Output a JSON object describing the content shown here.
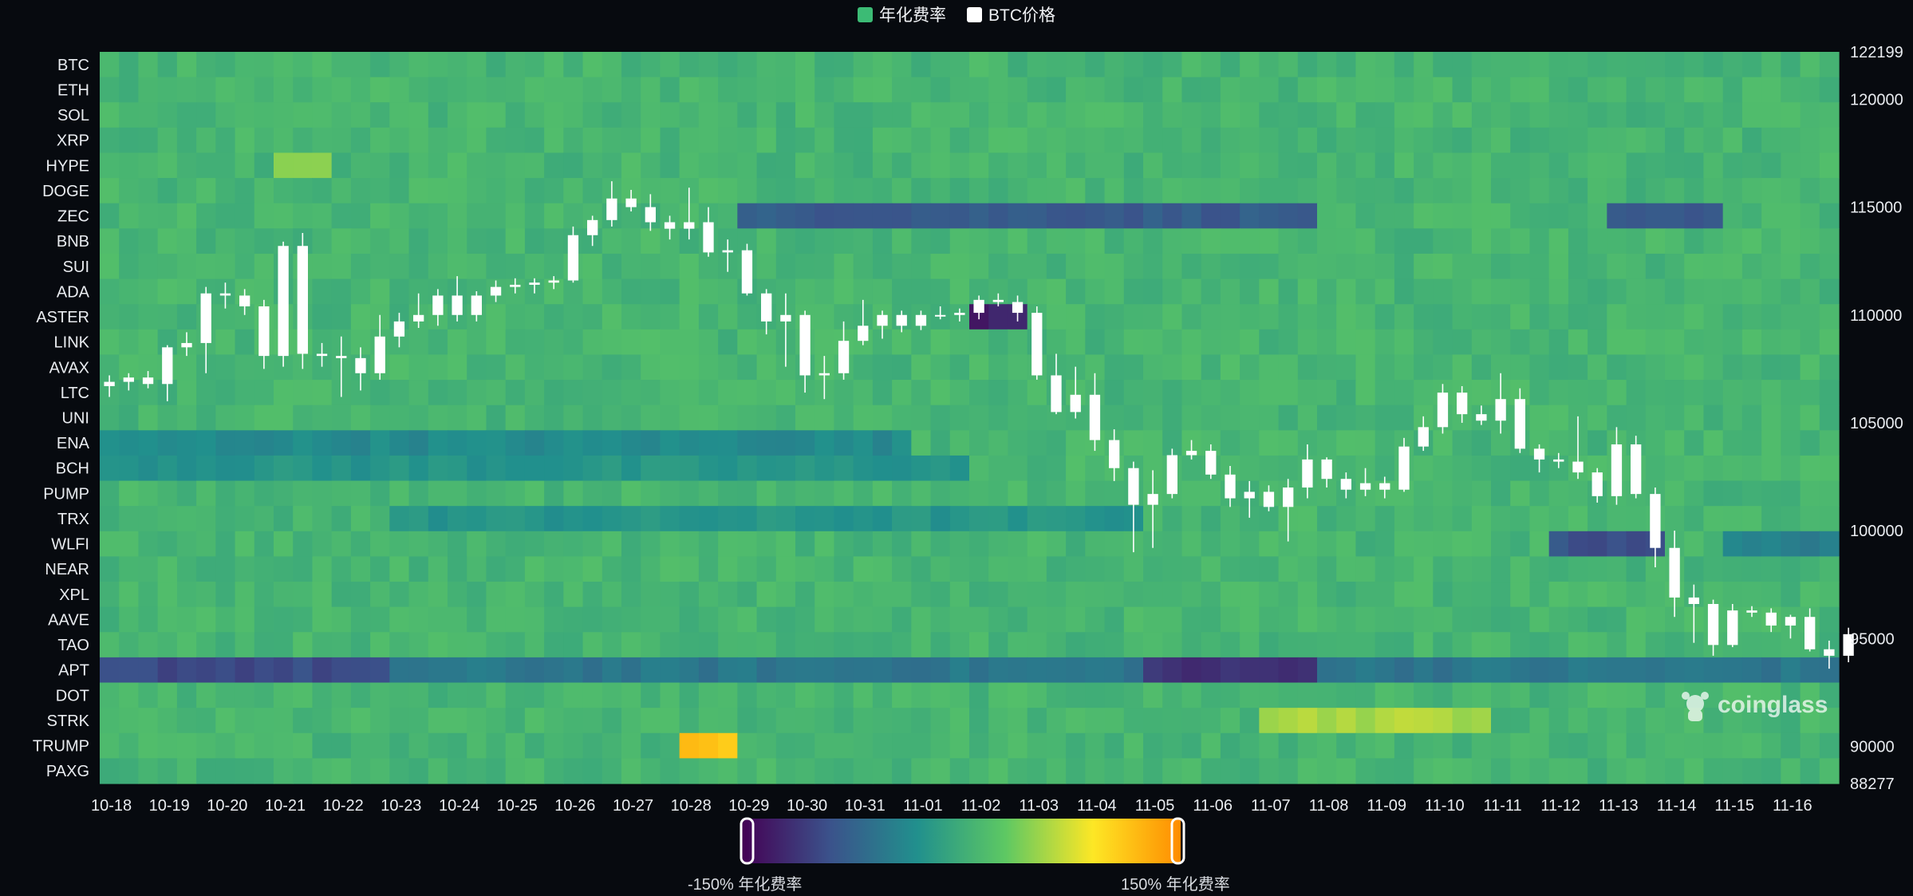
{
  "legend": {
    "funding_label": "年化费率",
    "funding_color": "#3cbb75",
    "price_label": "BTC价格",
    "price_color": "#ffffff"
  },
  "watermark": "coinglass",
  "colorbar": {
    "min_label": "-150% 年化费率",
    "max_label": "150% 年化费率",
    "colors": [
      "#440154",
      "#3b528b",
      "#21908d",
      "#5dc863",
      "#fde725",
      "#ff8c00"
    ]
  },
  "chart_data": {
    "type": "heatmap",
    "title": "",
    "legend_position": "top-center",
    "coins": [
      "BTC",
      "ETH",
      "SOL",
      "XRP",
      "HYPE",
      "DOGE",
      "ZEC",
      "BNB",
      "SUI",
      "ADA",
      "ASTER",
      "LINK",
      "AVAX",
      "LTC",
      "UNI",
      "ENA",
      "BCH",
      "PUMP",
      "TRX",
      "WLFI",
      "NEAR",
      "XPL",
      "AAVE",
      "TAO",
      "APT",
      "DOT",
      "STRK",
      "TRUMP",
      "PAXG"
    ],
    "dates": [
      "10-18",
      "10-19",
      "10-20",
      "10-21",
      "10-22",
      "10-23",
      "10-24",
      "10-25",
      "10-26",
      "10-27",
      "10-28",
      "10-29",
      "10-30",
      "10-31",
      "11-01",
      "11-02",
      "11-03",
      "11-04",
      "11-05",
      "11-06",
      "11-07",
      "11-08",
      "11-09",
      "11-10",
      "11-11",
      "11-12",
      "11-13",
      "11-14",
      "11-15",
      "11-16"
    ],
    "color_range": [
      -150,
      150
    ],
    "color_unit": "年化费率 %",
    "price_axis": {
      "ylim": [
        88277,
        122199
      ],
      "ticks": [
        122199,
        120000,
        115000,
        110000,
        105000,
        100000,
        95000,
        90000,
        88277
      ]
    },
    "baseline_funding": 10,
    "rate_highlights": [
      {
        "coin": "ZEC",
        "from": "10-29",
        "to": "11-07",
        "value": -80
      },
      {
        "coin": "ZEC",
        "from": "11-13",
        "to": "11-14",
        "value": -90
      },
      {
        "coin": "APT",
        "from": "10-18",
        "to": "10-23",
        "value": -95
      },
      {
        "coin": "APT",
        "from": "10-23",
        "to": "11-16",
        "value": -55
      },
      {
        "coin": "APT",
        "from": "11-05",
        "to": "11-07",
        "value": -115
      },
      {
        "coin": "ENA",
        "from": "10-18",
        "to": "10-31",
        "value": -35
      },
      {
        "coin": "BCH",
        "from": "10-18",
        "to": "11-01",
        "value": -25
      },
      {
        "coin": "TRX",
        "from": "10-23",
        "to": "11-04",
        "value": -25
      },
      {
        "coin": "WLFI",
        "from": "11-12",
        "to": "11-13",
        "value": -90
      },
      {
        "coin": "WLFI",
        "from": "11-15",
        "to": "11-16",
        "value": -45
      },
      {
        "coin": "ASTER",
        "from": "11-02",
        "to": "11-02",
        "value": -130
      },
      {
        "coin": "TRUMP",
        "from": "10-28",
        "to": "10-28",
        "value": 115
      },
      {
        "coin": "HYPE",
        "from": "10-21",
        "to": "10-21",
        "value": 55
      },
      {
        "coin": "STRK",
        "from": "11-07",
        "to": "11-10",
        "value": 60
      }
    ],
    "btc_candles": [
      {
        "t": "10-18 00:00",
        "o": 106700,
        "h": 107200,
        "l": 106200,
        "c": 106900
      },
      {
        "t": "10-18 08:00",
        "o": 106900,
        "h": 107300,
        "l": 106500,
        "c": 107100
      },
      {
        "t": "10-18 16:00",
        "o": 107100,
        "h": 107400,
        "l": 106600,
        "c": 106800
      },
      {
        "t": "10-19 00:00",
        "o": 106800,
        "h": 108600,
        "l": 106000,
        "c": 108500
      },
      {
        "t": "10-19 08:00",
        "o": 108500,
        "h": 109200,
        "l": 108100,
        "c": 108700
      },
      {
        "t": "10-19 16:00",
        "o": 108700,
        "h": 111300,
        "l": 107300,
        "c": 111000
      },
      {
        "t": "10-20 00:00",
        "o": 111000,
        "h": 111500,
        "l": 110300,
        "c": 110900
      },
      {
        "t": "10-20 08:00",
        "o": 110900,
        "h": 111200,
        "l": 110000,
        "c": 110400
      },
      {
        "t": "10-20 16:00",
        "o": 110400,
        "h": 110700,
        "l": 107500,
        "c": 108100
      },
      {
        "t": "10-21 00:00",
        "o": 108100,
        "h": 113400,
        "l": 107600,
        "c": 113200
      },
      {
        "t": "10-21 08:00",
        "o": 113200,
        "h": 113800,
        "l": 107500,
        "c": 108200
      },
      {
        "t": "10-21 16:00",
        "o": 108200,
        "h": 108700,
        "l": 107600,
        "c": 108100
      },
      {
        "t": "10-22 00:00",
        "o": 108100,
        "h": 109000,
        "l": 106200,
        "c": 108000
      },
      {
        "t": "10-22 08:00",
        "o": 108000,
        "h": 108500,
        "l": 106500,
        "c": 107300
      },
      {
        "t": "10-22 16:00",
        "o": 107300,
        "h": 110000,
        "l": 107000,
        "c": 109000
      },
      {
        "t": "10-23 00:00",
        "o": 109000,
        "h": 110100,
        "l": 108500,
        "c": 109700
      },
      {
        "t": "10-23 08:00",
        "o": 109700,
        "h": 111000,
        "l": 109400,
        "c": 110000
      },
      {
        "t": "10-23 16:00",
        "o": 110000,
        "h": 111200,
        "l": 109500,
        "c": 110900
      },
      {
        "t": "10-24 00:00",
        "o": 110900,
        "h": 111800,
        "l": 109700,
        "c": 110000
      },
      {
        "t": "10-24 08:00",
        "o": 110000,
        "h": 111100,
        "l": 109700,
        "c": 110900
      },
      {
        "t": "10-24 16:00",
        "o": 110900,
        "h": 111600,
        "l": 110600,
        "c": 111300
      },
      {
        "t": "10-25 00:00",
        "o": 111300,
        "h": 111700,
        "l": 111000,
        "c": 111400
      },
      {
        "t": "10-25 08:00",
        "o": 111400,
        "h": 111700,
        "l": 111000,
        "c": 111500
      },
      {
        "t": "10-25 16:00",
        "o": 111500,
        "h": 111800,
        "l": 111200,
        "c": 111600
      },
      {
        "t": "10-26 00:00",
        "o": 111600,
        "h": 114100,
        "l": 111500,
        "c": 113700
      },
      {
        "t": "10-26 08:00",
        "o": 113700,
        "h": 114600,
        "l": 113200,
        "c": 114400
      },
      {
        "t": "10-26 16:00",
        "o": 114400,
        "h": 116200,
        "l": 114100,
        "c": 115400
      },
      {
        "t": "10-27 00:00",
        "o": 115400,
        "h": 115800,
        "l": 114800,
        "c": 115000
      },
      {
        "t": "10-27 08:00",
        "o": 115000,
        "h": 115600,
        "l": 113900,
        "c": 114300
      },
      {
        "t": "10-27 16:00",
        "o": 114300,
        "h": 114600,
        "l": 113500,
        "c": 114000
      },
      {
        "t": "10-28 00:00",
        "o": 114000,
        "h": 115900,
        "l": 113500,
        "c": 114300
      },
      {
        "t": "10-28 08:00",
        "o": 114300,
        "h": 115000,
        "l": 112700,
        "c": 112900
      },
      {
        "t": "10-28 16:00",
        "o": 112900,
        "h": 113500,
        "l": 112000,
        "c": 113000
      },
      {
        "t": "10-29 00:00",
        "o": 113000,
        "h": 113300,
        "l": 110900,
        "c": 111000
      },
      {
        "t": "10-29 08:00",
        "o": 111000,
        "h": 111200,
        "l": 109100,
        "c": 109700
      },
      {
        "t": "10-29 16:00",
        "o": 109700,
        "h": 111000,
        "l": 107600,
        "c": 110000
      },
      {
        "t": "10-30 00:00",
        "o": 110000,
        "h": 110200,
        "l": 106400,
        "c": 107200
      },
      {
        "t": "10-30 08:00",
        "o": 107200,
        "h": 108100,
        "l": 106100,
        "c": 107300
      },
      {
        "t": "10-30 16:00",
        "o": 107300,
        "h": 109700,
        "l": 107000,
        "c": 108800
      },
      {
        "t": "10-31 00:00",
        "o": 108800,
        "h": 110700,
        "l": 108600,
        "c": 109500
      },
      {
        "t": "10-31 08:00",
        "o": 109500,
        "h": 110200,
        "l": 108900,
        "c": 110000
      },
      {
        "t": "10-31 16:00",
        "o": 110000,
        "h": 110200,
        "l": 109200,
        "c": 109500
      },
      {
        "t": "11-01 00:00",
        "o": 109500,
        "h": 110200,
        "l": 109300,
        "c": 110000
      },
      {
        "t": "11-01 08:00",
        "o": 110000,
        "h": 110400,
        "l": 109800,
        "c": 110000
      },
      {
        "t": "11-01 16:00",
        "o": 110000,
        "h": 110300,
        "l": 109700,
        "c": 110100
      },
      {
        "t": "11-02 00:00",
        "o": 110100,
        "h": 110900,
        "l": 109800,
        "c": 110700
      },
      {
        "t": "11-02 08:00",
        "o": 110700,
        "h": 111000,
        "l": 110400,
        "c": 110600
      },
      {
        "t": "11-02 16:00",
        "o": 110600,
        "h": 110900,
        "l": 109700,
        "c": 110100
      },
      {
        "t": "11-03 00:00",
        "o": 110100,
        "h": 110400,
        "l": 107000,
        "c": 107200
      },
      {
        "t": "11-03 08:00",
        "o": 107200,
        "h": 108200,
        "l": 105400,
        "c": 105500
      },
      {
        "t": "11-03 16:00",
        "o": 105500,
        "h": 107600,
        "l": 105200,
        "c": 106300
      },
      {
        "t": "11-04 00:00",
        "o": 106300,
        "h": 107300,
        "l": 103700,
        "c": 104200
      },
      {
        "t": "11-04 08:00",
        "o": 104200,
        "h": 104700,
        "l": 102300,
        "c": 102900
      },
      {
        "t": "11-04 16:00",
        "o": 102900,
        "h": 103200,
        "l": 99000,
        "c": 101200
      },
      {
        "t": "11-05 00:00",
        "o": 101200,
        "h": 102800,
        "l": 99200,
        "c": 101700
      },
      {
        "t": "11-05 08:00",
        "o": 101700,
        "h": 103800,
        "l": 101500,
        "c": 103500
      },
      {
        "t": "11-05 16:00",
        "o": 103500,
        "h": 104200,
        "l": 103300,
        "c": 103700
      },
      {
        "t": "11-06 00:00",
        "o": 103700,
        "h": 104000,
        "l": 102400,
        "c": 102600
      },
      {
        "t": "11-06 08:00",
        "o": 102600,
        "h": 103000,
        "l": 101100,
        "c": 101500
      },
      {
        "t": "11-06 16:00",
        "o": 101500,
        "h": 102300,
        "l": 100600,
        "c": 101800
      },
      {
        "t": "11-07 00:00",
        "o": 101800,
        "h": 102100,
        "l": 100900,
        "c": 101100
      },
      {
        "t": "11-07 08:00",
        "o": 101100,
        "h": 102400,
        "l": 99500,
        "c": 102000
      },
      {
        "t": "11-07 16:00",
        "o": 102000,
        "h": 104000,
        "l": 101500,
        "c": 103300
      },
      {
        "t": "11-08 00:00",
        "o": 103300,
        "h": 103400,
        "l": 102000,
        "c": 102400
      },
      {
        "t": "11-08 08:00",
        "o": 102400,
        "h": 102700,
        "l": 101500,
        "c": 101900
      },
      {
        "t": "11-08 16:00",
        "o": 101900,
        "h": 102900,
        "l": 101600,
        "c": 102200
      },
      {
        "t": "11-09 00:00",
        "o": 102200,
        "h": 102500,
        "l": 101500,
        "c": 101900
      },
      {
        "t": "11-09 08:00",
        "o": 101900,
        "h": 104300,
        "l": 101800,
        "c": 103900
      },
      {
        "t": "11-09 16:00",
        "o": 103900,
        "h": 105300,
        "l": 103700,
        "c": 104800
      },
      {
        "t": "11-10 00:00",
        "o": 104800,
        "h": 106800,
        "l": 104500,
        "c": 106400
      },
      {
        "t": "11-10 08:00",
        "o": 106400,
        "h": 106700,
        "l": 105000,
        "c": 105400
      },
      {
        "t": "11-10 16:00",
        "o": 105400,
        "h": 105800,
        "l": 104900,
        "c": 105100
      },
      {
        "t": "11-11 00:00",
        "o": 105100,
        "h": 107300,
        "l": 104500,
        "c": 106100
      },
      {
        "t": "11-11 08:00",
        "o": 106100,
        "h": 106600,
        "l": 103600,
        "c": 103800
      },
      {
        "t": "11-11 16:00",
        "o": 103800,
        "h": 104000,
        "l": 102700,
        "c": 103300
      },
      {
        "t": "11-12 00:00",
        "o": 103300,
        "h": 103600,
        "l": 102900,
        "c": 103200
      },
      {
        "t": "11-12 08:00",
        "o": 103200,
        "h": 105300,
        "l": 102400,
        "c": 102700
      },
      {
        "t": "11-12 16:00",
        "o": 102700,
        "h": 102900,
        "l": 101300,
        "c": 101600
      },
      {
        "t": "11-13 00:00",
        "o": 101600,
        "h": 104800,
        "l": 101200,
        "c": 104000
      },
      {
        "t": "11-13 08:00",
        "o": 104000,
        "h": 104400,
        "l": 101500,
        "c": 101700
      },
      {
        "t": "11-13 16:00",
        "o": 101700,
        "h": 102000,
        "l": 98300,
        "c": 99200
      },
      {
        "t": "11-14 00:00",
        "o": 99200,
        "h": 100000,
        "l": 96000,
        "c": 96900
      },
      {
        "t": "11-14 08:00",
        "o": 96900,
        "h": 97500,
        "l": 94800,
        "c": 96600
      },
      {
        "t": "11-14 16:00",
        "o": 96600,
        "h": 96800,
        "l": 94200,
        "c": 94700
      },
      {
        "t": "11-15 00:00",
        "o": 94700,
        "h": 96600,
        "l": 94600,
        "c": 96300
      },
      {
        "t": "11-15 08:00",
        "o": 96300,
        "h": 96500,
        "l": 96000,
        "c": 96200
      },
      {
        "t": "11-15 16:00",
        "o": 96200,
        "h": 96400,
        "l": 95300,
        "c": 95600
      },
      {
        "t": "11-16 00:00",
        "o": 95600,
        "h": 96100,
        "l": 95000,
        "c": 96000
      },
      {
        "t": "11-16 08:00",
        "o": 96000,
        "h": 96400,
        "l": 94400,
        "c": 94500
      },
      {
        "t": "11-16 16:00",
        "o": 94500,
        "h": 94900,
        "l": 93600,
        "c": 94200
      },
      {
        "t": "11-17 00:00",
        "o": 94200,
        "h": 95500,
        "l": 93900,
        "c": 95200
      }
    ]
  }
}
